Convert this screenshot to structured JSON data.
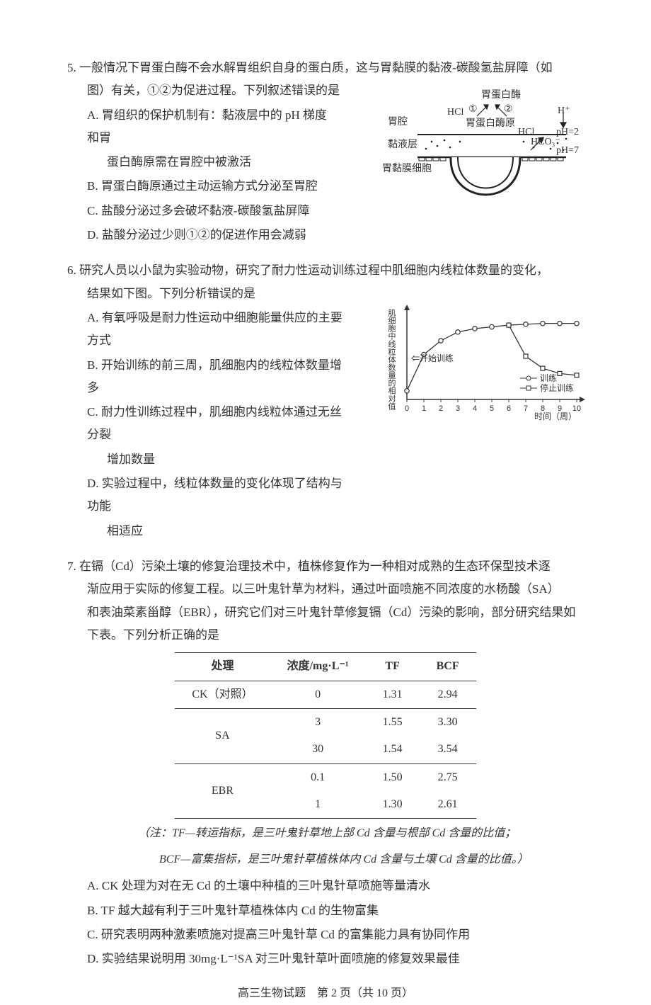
{
  "q5": {
    "num": "5.",
    "stem1": "一般情况下胃蛋白酶不会水解胃组织自身的蛋白质，这与胃黏膜的黏液-碳酸氢盐屏障（如",
    "stem2": "图）有关，①②为促进过程。下列叙述错误的是",
    "opts": {
      "A1": "A. 胃组织的保护机制有：黏液层中的 pH 梯度和胃",
      "A2": "蛋白酶原需在胃腔中被激活",
      "B": "B. 胃蛋白酶原通过主动运输方式分泌至胃腔",
      "C": "C. 盐酸分泌过多会破坏黏液-碳酸氢盐屏障",
      "D": "D. 盐酸分泌过少则①②的促进作用会减弱"
    },
    "fig": {
      "l_pepsin": "胃蛋白酶",
      "l_hcl": "HCl",
      "l_c1": "①",
      "l_c2": "②",
      "l_pepsinogen": "胃蛋白酶原",
      "l_hplus": "H⁺",
      "l_ph2": "pH=2",
      "l_ph7": "pH=7",
      "l_hco3": "HCO₃⁻",
      "l_hcl2": "HCl",
      "l_cavity": "胃腔",
      "l_mucus": "黏液层",
      "l_cell": "胃黏膜细胞"
    }
  },
  "q6": {
    "num": "6.",
    "stem1": "研究人员以小鼠为实验动物，研究了耐力性运动训练过程中肌细胞内线粒体数量的变化，",
    "stem2": "结果如下图。下列分析错误的是",
    "opts": {
      "A": "A. 有氧呼吸是耐力性运动中细胞能量供应的主要方式",
      "B": "B. 开始训练的前三周，肌细胞内的线粒体数量增多",
      "C1": "C. 耐力性训练过程中，肌细胞内线粒体通过无丝分裂",
      "C2": "增加数量",
      "D1": "D. 实验过程中，线粒体数量的变化体现了结构与功能",
      "D2": "相适应"
    },
    "chart": {
      "type": "line",
      "xlabel": "时间（周）",
      "ylabel": "肌细胞中线粒体数量的相对值",
      "xlim": [
        0,
        10
      ],
      "xticks": [
        0,
        1,
        2,
        3,
        4,
        5,
        6,
        7,
        8,
        9,
        10
      ],
      "arrow_label": "⇐开始训练",
      "legend": {
        "train": "训练",
        "stop": "停止训练"
      },
      "series_train": {
        "marker": "circle-open",
        "x": [
          0,
          1,
          2,
          3,
          4,
          5,
          6,
          7,
          8,
          9,
          10
        ],
        "y": [
          10,
          52,
          68,
          78,
          82,
          84,
          86,
          87,
          88,
          88,
          88
        ]
      },
      "series_stop": {
        "marker": "square-open",
        "x_start": 6,
        "x": [
          6,
          7,
          8,
          9,
          10
        ],
        "y": [
          86,
          50,
          36,
          30,
          28
        ]
      },
      "line_color": "#333333",
      "bg": "#ffffff"
    }
  },
  "q7": {
    "num": "7.",
    "stem1": "在镉（Cd）污染土壤的修复治理技术中，植株修复作为一种相对成熟的生态环保型技术逐",
    "stem2": "渐应用于实际的修复工程。以三叶鬼针草为材料，通过叶面喷施不同浓度的水杨酸（SA）",
    "stem3": "和表油菜素甾醇（EBR），研究它们对三叶鬼针草修复镉（Cd）污染的影响，部分研究结果如",
    "stem4": "下表。下列分析正确的是",
    "table": {
      "columns": [
        "处理",
        "浓度/mg·L⁻¹",
        "TF",
        "BCF"
      ],
      "rows": [
        {
          "t": "CK（对照）",
          "c": "0",
          "tf": "1.31",
          "bcf": "2.94",
          "sep": true,
          "rowspan": 1
        },
        {
          "t": "SA",
          "c": "3",
          "tf": "1.55",
          "bcf": "3.30",
          "sep": false,
          "rowspan": 2
        },
        {
          "t": "",
          "c": "30",
          "tf": "1.54",
          "bcf": "3.54",
          "sep": true,
          "rowspan": 0
        },
        {
          "t": "EBR",
          "c": "0.1",
          "tf": "1.50",
          "bcf": "2.75",
          "sep": false,
          "rowspan": 2
        },
        {
          "t": "",
          "c": "1",
          "tf": "1.30",
          "bcf": "2.61",
          "sep": false,
          "rowspan": 0,
          "last": true
        }
      ]
    },
    "note1": "（注：TF—转运指标，是三叶鬼针草地上部 Cd 含量与根部 Cd 含量的比值；",
    "note2": "BCF—富集指标，是三叶鬼针草植株体内 Cd 含量与土壤 Cd 含量的比值。）",
    "opts": {
      "A": "A. CK 处理为对在无 Cd 的土壤中种植的三叶鬼针草喷施等量清水",
      "B": "B. TF 越大越有利于三叶鬼针草植株体内 Cd 的生物富集",
      "C": "C. 研究表明两种激素喷施对提高三叶鬼针草 Cd 的富集能力具有协同作用",
      "D": "D. 实验结果说明用 30mg·L⁻¹SA 对三叶鬼针草叶面喷施的修复效果最佳"
    }
  },
  "footer": "高三生物试题　第 2 页（共 10 页）"
}
